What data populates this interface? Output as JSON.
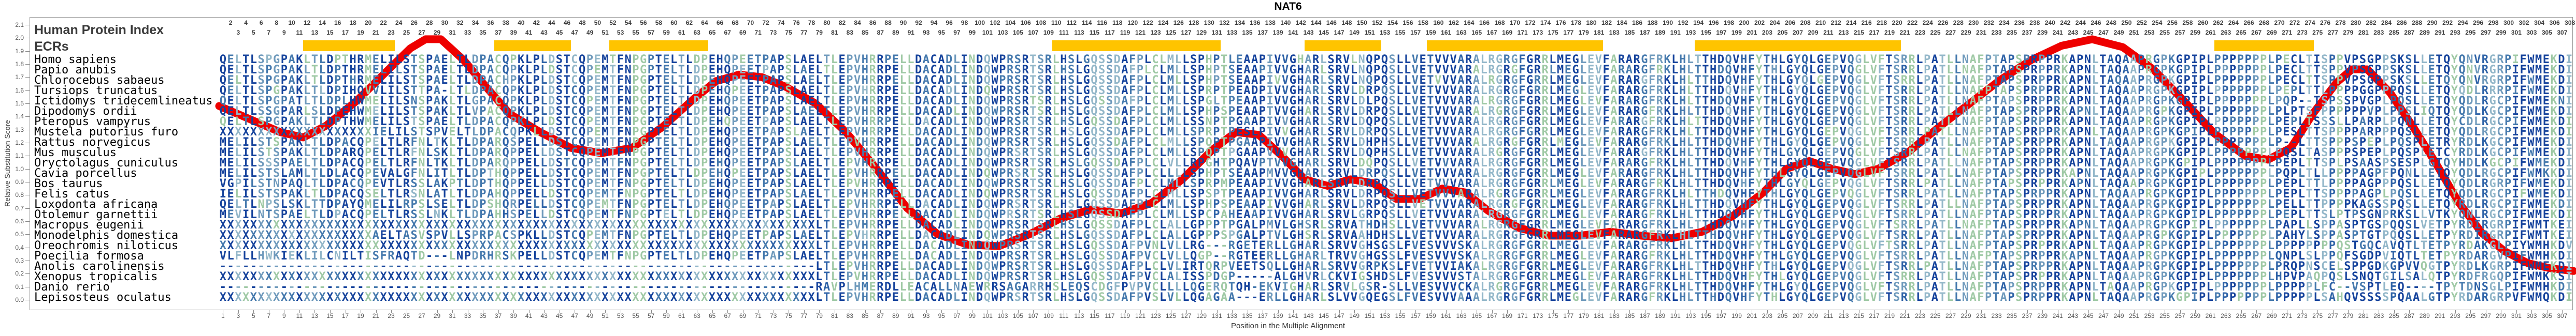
{
  "title": "NAT6",
  "header": {
    "human_protein_index": "Human Protein Index",
    "ecrs_label": "ECRs"
  },
  "axes": {
    "y_label": "Relative Substitution Score",
    "x_label": "Position in the Multiple Alignment",
    "y_ticks": [
      "0.0",
      "0.1",
      "0.2",
      "0.3",
      "0.4",
      "0.5",
      "0.6",
      "0.7",
      "0.8",
      "0.9",
      "1.0",
      "1.1",
      "1.2",
      "1.3",
      "1.4",
      "1.5",
      "1.6",
      "1.7",
      "1.8",
      "1.9",
      "2.0",
      "2.1"
    ],
    "y_range": [
      0.0,
      2.1
    ],
    "x_range": [
      1,
      308
    ]
  },
  "ruler": {
    "top_even": {
      "start": 2,
      "end": 308,
      "step": 2
    },
    "top_odd": {
      "start": 3,
      "end": 307,
      "step": 2
    },
    "bottom_odd": {
      "start": 1,
      "end": 307,
      "step": 2
    }
  },
  "colors": {
    "ecr_block": "#ffc400",
    "score_curve": "#ee0000",
    "ruler_text": "#3a3a3a",
    "axis_text": "#555555",
    "border": "#9a9a9a",
    "letter_palette": [
      "#16439c",
      "#2f63a7",
      "#4579ad",
      "#6f9abc",
      "#93b7c9",
      "#9fc9a5"
    ]
  },
  "ecr_blocks": [
    {
      "start": 12,
      "end": 23
    },
    {
      "start": 37,
      "end": 46
    },
    {
      "start": 52,
      "end": 64
    },
    {
      "start": 110,
      "end": 131
    },
    {
      "start": 143,
      "end": 152
    },
    {
      "start": 159,
      "end": 181
    },
    {
      "start": 194,
      "end": 220
    },
    {
      "start": 262,
      "end": 274
    }
  ],
  "segments": {
    "h43_120": "LDSTCQPEMTFNPGPTELTLDPEHQPEETPAPSLAELTLEPVHRRPELLDACADLINDQWPRSRTSRLHSLGQSSDAF",
    "h79_120": "LTLEPVHRRPELLDACADLINDQWPRSRTSRLHSLGQSSDAF",
    "h165_269": "ALRGRGFGRRLMEGLEVFARARGFRKLHLTTHDQVHFYTHLGYQLGEPVQGLVFTSRRLPATLLNAFPTAPSPRPPRKAPNLTAQAAPRGPKGPIPLPPPPPPPL",
    "danio_79_120": "RAVPLHMERDLLEACALLNAEWRRSAGARRHSLEQSCDGFPV"
  },
  "species": [
    {
      "name": "Homo sapiens",
      "left": "QELTLSPGPAKLTLDPTHRMELILSTSPAELTLDPACQPKLP",
      "left_pad": null,
      "mid": "PLCLMLLSPHPTLEAAPIVVGHARLSRVLNQPQSLLVETVVVAR",
      "right": "PECLTISPPVPSGPPSKSLLETQYQNVRGRPIFWMEKDI",
      "fill": "human"
    },
    {
      "name": "Papio anubis",
      "left": "QELTLSPGPAKLTLDPTHRMELILSTSPAELTLDPACQPKLP",
      "left_pad": null,
      "mid": "PLCLMLLSPHPTSEAAPIVVGHARLSRVLNQPQSLLVETVVVAR",
      "right": "PECLTTSPPVPSGPPSKSLLETQYQNVRGRPIFWMEKDI",
      "fill": "human"
    },
    {
      "name": "Chlorocebus sabaeus",
      "left": "QELTLSPGPAKLTLDPTHRMELILSTSPAELTLDPACHPKLP",
      "left_pad": null,
      "mid": "PLCLMLLSPHPTSEAAPIVVGHARLSRVLNQPQSLLVETVVVAR",
      "right": "PECLTTSPPVPSGPPSKSLLETQYQNVRGRPIFWMEKDI",
      "fill": "human"
    },
    {
      "name": "Tursiops truncatus",
      "left": "QELTLSPGPAKLTLDPIHQVVLILSTTPA-LTLDPACQPKLP",
      "left_pad": null,
      "mid": "PLCLMLLSPRPTPEADPIVVGHARLSRVLDRPQSLLVETVVVAR",
      "right": "PEPLTTLPPPPGGPPPQSLLETQYQDLRRRPIFWMEKDI",
      "fill": "human"
    },
    {
      "name": "Ictidomys tridecemlineatus",
      "left": "QELTLSPGPATLTLDPLHWMELILSNSPAKLTLGPACQPKLP",
      "left_pad": null,
      "mid": "PLCLMLLSPGLTPEAAPIVVGHARLSRVLDLPQSLLVETVVVAR",
      "right": "PQP--TSPSSPVGPLPQSLLETQYQDLRGCPIFWMEKNI",
      "fill": "human"
    },
    {
      "name": "Dipodomys ordii",
      "left": "QELTLSSGPARLSLDPEHWMELILSTSPAKLTLVPACQPKLP",
      "left_pad": null,
      "mid": "PLCLMLLSPHPSPEAAPTVVGHARLSRVLDRPQSLLVETVVVAR",
      "right": "PLPTSFPPPPPPVPLPPSLIQTQYQDLKGCPIFWMEKDI",
      "fill": "human"
    },
    {
      "name": "Pteropus vampyrus",
      "left": "QELTLSPGPAKLTLDPTHWMELILSTSPAELTLDPACQPKLP",
      "left_pad": null,
      "mid": "PLCLMLLSSNPTPGAAPIVVGHARLSRVLDQPQSLLVETVVVAR",
      "right": "PEPLTSSSLLPARPLPQNLLETQYCDLRGCPIFWMEKDI",
      "fill": "human"
    },
    {
      "name": "Mustela putorius furo",
      "left": "IELILSTSPVELTLDPACQPKL",
      "left_pad": "X",
      "mid": "PLCLMLLSPRPTPESLPIVVGHARLSRVLDRPQSLLVETVVVAR",
      "right": "PESLTTSPPPPARPPPQSLLETQYQDLRGCPIFWMEKDI",
      "fill": "human"
    },
    {
      "name": "Rattus norvegicus",
      "left": "MELILSTSPAKLTLDPACQPELTLRFNLTKLTLDPARQSPEL",
      "left_pad": null,
      "mid": "PLCLMLLSPQPTPGAAPIVVGHARLSRVLDHPHSLLVETVVVAR",
      "right": "P--LTTSPPPSPEPLPQSPLETRYRDLKGCPIFWMEKDI",
      "fill": "human"
    },
    {
      "name": "Mus musculus",
      "left": "MELILSTSPAKLTLDPARQPELTLRFNLSKLTLDPARQPPEL",
      "left_pad": null,
      "mid": "PLCLMLLSPQPTPGAAPVVVGHARLSRVLDQPHSLLVETVVVAR",
      "right": "PQSLTASPPPSPEPLPQSPLETCYRDLKGCPIFWMEKDI",
      "fill": "human"
    },
    {
      "name": "Oryctolagus cuniculus",
      "left": "MELILSSSPAELTLDPACQPELTLRFNLTKLTLDPARQPPEL",
      "left_pad": null,
      "mid": "PLCLVLLRPGHTPQAVPTVVGHARLSRVLDQPQSLLVETVVVAR",
      "right": "PEPLTTSPLPSAASPSESPLGTQYHDLKGCPIFWMEKDI",
      "fill": "human"
    },
    {
      "name": "Cavia porcellus",
      "left": "MELILSTSLAMLTLDLACQPEVALGFNLITLTLDPTHQPPEL",
      "left_pad": null,
      "mid": "PLCLLLLSPHPTSEAAPMVVGHARLSRVLDRPQSLLVETVVVAR",
      "right": "PQPLTLLPPPPAGPFPQNLLETQYQDLRGCPIFWMKKDI",
      "fill": "human"
    },
    {
      "name": "Bos taurus",
      "left": "VGPILSTNPAQLTLDPACQPEVTLRSSLAKPTLDPTHQPPEL",
      "left_pad": null,
      "mid": "PLCLMLLSPRPMPEAAPIVVGHARLSRVLDRPQSLLVETVVVAR",
      "right": "PEPLTTLPPPPAGPPPQSLLETQYQDLRGRPIFWMEKDI",
      "fill": "human"
    },
    {
      "name": "Felis catus",
      "left": "IELILSTSPAKLTLDPACQSELTLRSNLATLTLDPAHQPPEL",
      "left_pad": null,
      "mid": "PLCLMLLSPSPTPEAAPIVVGHARLSRVLDRPQSLLVETVVVAR",
      "right": "PEPLTTSPPPPAGPLPQSLLETQYQDLRGCPIFWMEKDI",
      "fill": "human"
    },
    {
      "name": "Loxodonta africana",
      "left": "QELTLNPSLSKLTTDPAYQMELILRPSLSELTLDPSHQRPEL",
      "left_pad": null,
      "mid": "PLCLMLLSPHPSPEAAPIVVGHARLSRVLDRPQSLLVETVVVAR",
      "right": "PELLTTPPPPKAGSSPQSLLETQYRDLRGCPIFWMEKDI",
      "fill": "human"
    },
    {
      "name": "Otolemur garnettii",
      "left": "MEVILNTSPAELTLDPACQPELTLRSSLNKLTLDPAHHSPEL",
      "left_pad": null,
      "mid": "PLCLMLLSPCPAHEAAPIVVGHARLSRVLGRPQSLLVETVVVAR",
      "right": "PEPLTTSLPTPSGNPRKSLLVTKYQNLRGCPIFWMEKDI",
      "fill": "human"
    },
    {
      "name": "Macropus eugenii",
      "left": "",
      "left_pad": "X",
      "mid": "PLCLALLGPPPTPGALPMVLGHSRLSRVATHDHSLLVETVVVAR",
      "right": "PAPLLSPPASPTGSPQQSLVETPYRDIRGRPIFWMTKEI",
      "fill": "x"
    },
    {
      "name": "Monodelphis domestica",
      "left": "AELTASVSPVLLSPRPACSPKL",
      "left_pad": "X",
      "mid": "PLCLALLGPPPSPGALPTVLGHSRLSRVAAHDHSLLVETVVVAR",
      "right": "PAHYLSPPASPTGTPQQSLLETPYRDIRGRPIFWMTKEI",
      "fill": "human"
    },
    {
      "name": "Oreochromis niloticus",
      "left": "",
      "left_pad": "X",
      "mid": "PVNLVLLRG---RGETERLLGHARLSRVVGHSGSLFVESVVVSK",
      "right": "PPPPPPPPQSTGQCAVQTLTETPYRDAKGLPIYWMHKDV",
      "fill": "x"
    },
    {
      "name": "Poecilia formosa",
      "left": "VLFLLHWKIEKLILCNILTISFRAQTD---LNPDRHRSKPEL",
      "left_pad": null,
      "mid": "PVCLVLLQGP--RGTEERLLGHARLTRVVGHGSSLFVESVVVSK",
      "right": "QNPLSLPPQFSGDPVIQTLTETPYRDARGVPIFWMHKDI",
      "fill": "human"
    },
    {
      "name": "Anolis carolinensis",
      "left": "",
      "left_pad": "-",
      "mid": "PLCLVLIRTQRPVEETSQLLGHARLSRVVGRPKSLFVETVVIAK",
      "right": "PRQPNSCELSPPGDKGPVVQGTPYRDLKGRPIFWMEKDI",
      "fill": "dash"
    },
    {
      "name": "Xenopus tropicalis",
      "left": "",
      "left_pad": "X",
      "mid": "PVCLALISSPDGP-----ALGHVRLCKVIGSHDSLFVESVVVST",
      "right": "HPVPAQPQSLSNQTGILSALQTPYRDFRGQPIFWMKKSI",
      "fill": "x"
    },
    {
      "name": "Danio rerio",
      "left": "",
      "left_pad": "-",
      "mid": "PVCLLLLQGERQTQH-EKVIGHARLSRVLGSR-SLLVESVVVCK",
      "right": "PPPPPLFC--VSPTLEQ----TPYTDNSGLPIFWMHKDI",
      "fill": "danio"
    },
    {
      "name": "Lepisosteus oculatus",
      "left": "",
      "left_pad": "X",
      "mid": "PVSLVLLQGAGAA---ERLLGHARLSLVVGQEGSLFVESVVVAA",
      "right": "PPPPPLSAHQVSSSSPQAALGTPYRDARGRPVFWMQKDI",
      "fill": "x"
    }
  ],
  "chart_data": {
    "type": "line",
    "title": "NAT6",
    "xlabel": "Position in the Multiple Alignment",
    "ylabel": "Relative Substitution Score",
    "ylim": [
      0.0,
      2.1
    ],
    "xlim": [
      1,
      308
    ],
    "grid": false,
    "series": [
      {
        "name": "substitution-score-curve",
        "color": "#ee0000",
        "points": [
          [
            0,
            1.48
          ],
          [
            4,
            1.38
          ],
          [
            8,
            1.28
          ],
          [
            11,
            1.24
          ],
          [
            14,
            1.33
          ],
          [
            18,
            1.52
          ],
          [
            22,
            1.75
          ],
          [
            25,
            1.92
          ],
          [
            27,
            1.99
          ],
          [
            29,
            1.99
          ],
          [
            32,
            1.83
          ],
          [
            35,
            1.62
          ],
          [
            38,
            1.42
          ],
          [
            42,
            1.28
          ],
          [
            46,
            1.16
          ],
          [
            50,
            1.12
          ],
          [
            54,
            1.16
          ],
          [
            58,
            1.32
          ],
          [
            62,
            1.53
          ],
          [
            65,
            1.67
          ],
          [
            68,
            1.72
          ],
          [
            71,
            1.7
          ],
          [
            74,
            1.63
          ],
          [
            78,
            1.5
          ],
          [
            82,
            1.28
          ],
          [
            86,
            1.0
          ],
          [
            90,
            0.7
          ],
          [
            94,
            0.5
          ],
          [
            98,
            0.42
          ],
          [
            102,
            0.41
          ],
          [
            106,
            0.5
          ],
          [
            110,
            0.62
          ],
          [
            114,
            0.69
          ],
          [
            118,
            0.66
          ],
          [
            122,
            0.74
          ],
          [
            126,
            0.92
          ],
          [
            130,
            1.15
          ],
          [
            133,
            1.28
          ],
          [
            136,
            1.26
          ],
          [
            139,
            1.1
          ],
          [
            142,
            0.92
          ],
          [
            145,
            0.87
          ],
          [
            148,
            0.92
          ],
          [
            151,
            0.89
          ],
          [
            154,
            0.77
          ],
          [
            157,
            0.77
          ],
          [
            160,
            0.85
          ],
          [
            163,
            0.82
          ],
          [
            166,
            0.68
          ],
          [
            170,
            0.55
          ],
          [
            174,
            0.49
          ],
          [
            178,
            0.49
          ],
          [
            182,
            0.52
          ],
          [
            186,
            0.49
          ],
          [
            190,
            0.47
          ],
          [
            194,
            0.52
          ],
          [
            198,
            0.64
          ],
          [
            202,
            0.82
          ],
          [
            205,
            1.0
          ],
          [
            208,
            1.06
          ],
          [
            211,
            1.0
          ],
          [
            214,
            0.96
          ],
          [
            217,
            1.0
          ],
          [
            221,
            1.13
          ],
          [
            225,
            1.32
          ],
          [
            229,
            1.5
          ],
          [
            233,
            1.68
          ],
          [
            237,
            1.83
          ],
          [
            241,
            1.94
          ],
          [
            245,
            1.99
          ],
          [
            249,
            1.93
          ],
          [
            253,
            1.76
          ],
          [
            257,
            1.52
          ],
          [
            261,
            1.27
          ],
          [
            265,
            1.1
          ],
          [
            268,
            1.07
          ],
          [
            271,
            1.16
          ],
          [
            274,
            1.43
          ],
          [
            277,
            1.66
          ],
          [
            279,
            1.76
          ],
          [
            281,
            1.76
          ],
          [
            284,
            1.58
          ],
          [
            287,
            1.32
          ],
          [
            290,
            1.04
          ],
          [
            293,
            0.74
          ],
          [
            296,
            0.51
          ],
          [
            299,
            0.37
          ],
          [
            302,
            0.28
          ],
          [
            305,
            0.24
          ],
          [
            308,
            0.22
          ]
        ]
      }
    ]
  }
}
